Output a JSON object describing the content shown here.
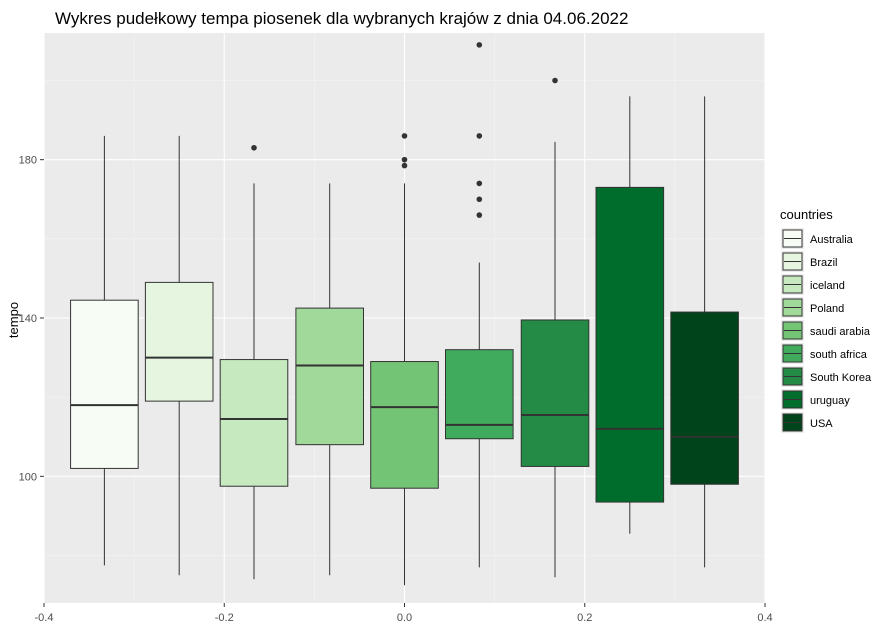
{
  "chart_data": {
    "type": "boxplot",
    "title": "Wykres pudełkowy tempa piosenek dla wybranych krajów z dnia 04.06.2022",
    "ylabel": "tempo",
    "xlabel": "",
    "xlim": [
      -0.4,
      0.4
    ],
    "ylim": [
      68,
      212
    ],
    "x_ticks": [
      -0.4,
      -0.2,
      0.0,
      0.2,
      0.4
    ],
    "x_tick_labels": [
      "-0.4",
      "-0.2",
      "0.0",
      "0.2",
      "0.4"
    ],
    "y_ticks": [
      100,
      140,
      180
    ],
    "y_tick_labels": [
      "100",
      "140",
      "180"
    ],
    "grid": true,
    "legend": {
      "title": "countries",
      "position": "right"
    },
    "series": [
      {
        "name": "Australia",
        "x": -0.333,
        "whisker_low": 77.5,
        "q1": 102.0,
        "median": 118.0,
        "q3": 144.5,
        "whisker_high": 186.0,
        "outliers": [],
        "color": "#F7FCF5"
      },
      {
        "name": "Brazil",
        "x": -0.25,
        "whisker_low": 75.0,
        "q1": 119.0,
        "median": 130.0,
        "q3": 149.0,
        "whisker_high": 186.0,
        "outliers": [],
        "color": "#E5F5E0"
      },
      {
        "name": "iceland",
        "x": -0.167,
        "whisker_low": 74.0,
        "q1": 97.5,
        "median": 114.5,
        "q3": 129.5,
        "whisker_high": 174.0,
        "outliers": [
          183.0
        ],
        "color": "#C7E9C0"
      },
      {
        "name": "Poland",
        "x": -0.083,
        "whisker_low": 75.0,
        "q1": 108.0,
        "median": 128.0,
        "q3": 142.5,
        "whisker_high": 174.0,
        "outliers": [],
        "color": "#A1D99B"
      },
      {
        "name": "saudi arabia",
        "x": 0.0,
        "whisker_low": 72.5,
        "q1": 97.0,
        "median": 117.5,
        "q3": 129.0,
        "whisker_high": 174.0,
        "outliers": [
          178.5,
          180.0,
          186.0
        ],
        "color": "#74C476"
      },
      {
        "name": "south africa",
        "x": 0.083,
        "whisker_low": 77.0,
        "q1": 109.5,
        "median": 113.0,
        "q3": 132.0,
        "whisker_high": 154.0,
        "outliers": [
          166.0,
          170.0,
          174.0,
          186.0,
          209.0
        ],
        "color": "#41AB5D"
      },
      {
        "name": "South Korea",
        "x": 0.167,
        "whisker_low": 74.5,
        "q1": 102.5,
        "median": 115.5,
        "q3": 139.5,
        "whisker_high": 184.5,
        "outliers": [
          200.0
        ],
        "color": "#238B45"
      },
      {
        "name": "uruguay",
        "x": 0.25,
        "whisker_low": 85.5,
        "q1": 93.5,
        "median": 112.0,
        "q3": 173.0,
        "whisker_high": 196.0,
        "outliers": [],
        "color": "#006D2C"
      },
      {
        "name": "USA",
        "x": 0.333,
        "whisker_low": 77.0,
        "q1": 98.0,
        "median": 110.0,
        "q3": 141.5,
        "whisker_high": 196.0,
        "outliers": [],
        "color": "#00441B"
      }
    ],
    "box_width": 0.075,
    "colors": {
      "panel": "#EBEBEB",
      "grid_major": "#FFFFFF",
      "grid_minor": "#F5F5F5",
      "axis_text": "#4D4D4D",
      "title_text": "#000000",
      "box_outline": "#333333",
      "outlier": "#333333"
    }
  }
}
